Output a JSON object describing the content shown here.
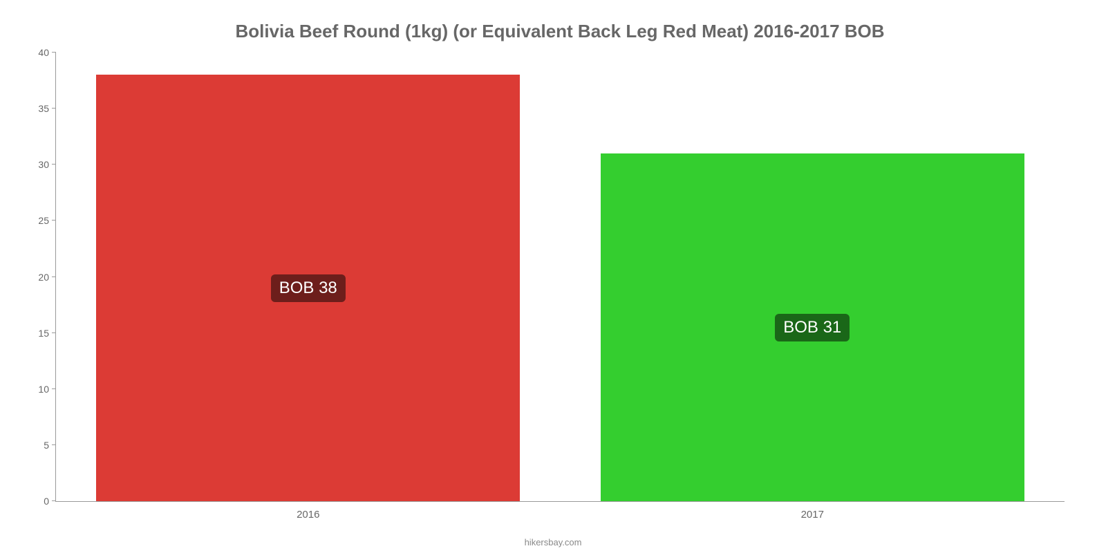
{
  "chart": {
    "type": "bar",
    "title": "Bolivia Beef Round (1kg) (or Equivalent Back Leg Red Meat) 2016-2017 BOB",
    "title_fontsize": 26,
    "title_color": "#676767",
    "background_color": "#ffffff",
    "axis_color": "#999999",
    "label_color": "#676767",
    "tick_fontsize": 14,
    "xlabel_fontsize": 15,
    "ylim": [
      0,
      40
    ],
    "ytick_step": 5,
    "yticks": [
      0,
      5,
      10,
      15,
      20,
      25,
      30,
      35,
      40
    ],
    "categories": [
      "2016",
      "2017"
    ],
    "values": [
      38,
      31
    ],
    "bar_colors": [
      "#dc3b35",
      "#34ce2f"
    ],
    "bar_label_bg": [
      "#6d1e1b",
      "#1a6718"
    ],
    "bar_labels": [
      "BOB 38",
      "BOB 31"
    ],
    "bar_label_fontsize": 24,
    "bar_label_color": "#ffffff",
    "bar_width": 0.84,
    "attribution": "hikersbay.com",
    "attribution_color": "#888888"
  }
}
